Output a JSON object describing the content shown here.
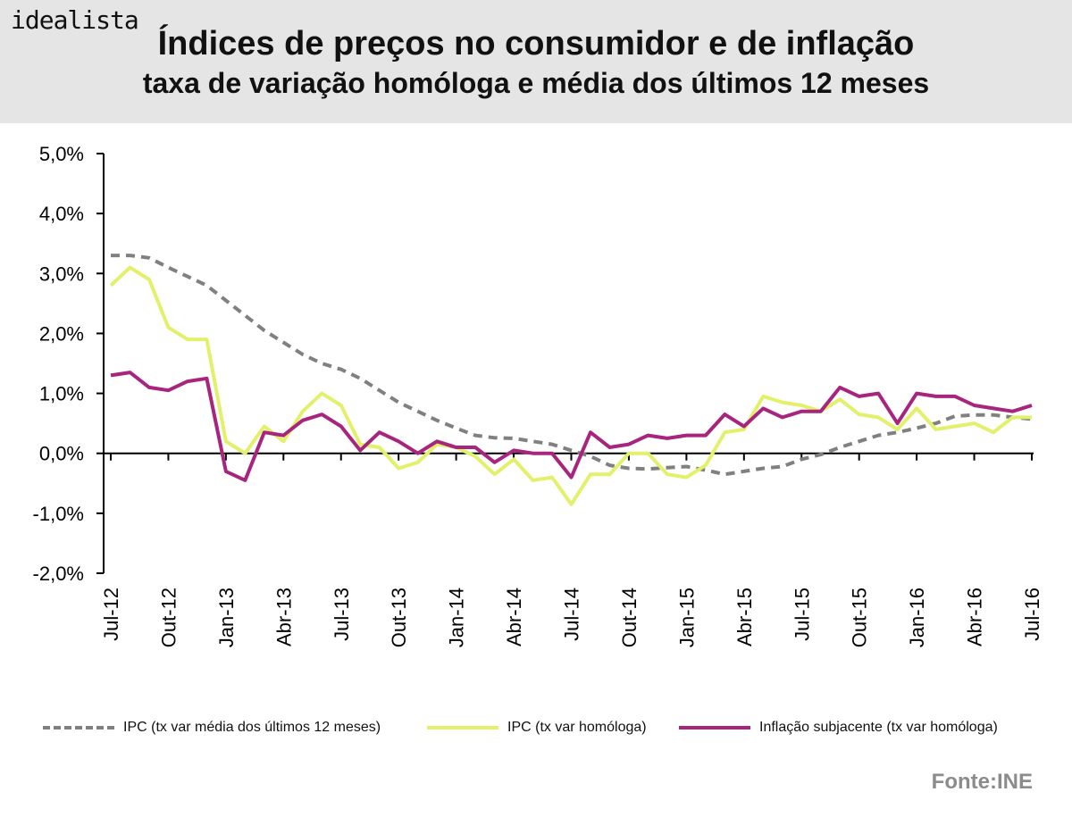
{
  "header": {
    "brand": "idealista",
    "title": "Índices de preços no consumidor e de inflação",
    "subtitle": "taxa de variação homóloga e média dos últimos 12 meses"
  },
  "source": "Fonte:INE",
  "chart_data": {
    "type": "line",
    "title": "Índices de preços no consumidor e de inflação",
    "subtitle": "taxa de variação homóloga e média dos últimos 12 meses",
    "ylim": [
      -2.0,
      5.0
    ],
    "yticks": [
      -2.0,
      -1.0,
      0.0,
      1.0,
      2.0,
      3.0,
      4.0,
      5.0
    ],
    "ytick_labels": [
      "-2,0%",
      "-1,0%",
      "0,0%",
      "1,0%",
      "2,0%",
      "3,0%",
      "4,0%",
      "5,0%"
    ],
    "x_tick_labels": [
      "Jul-12",
      "Out-12",
      "Jan-13",
      "Abr-13",
      "Jul-13",
      "Out-13",
      "Jan-14",
      "Abr-14",
      "Jul-14",
      "Out-14",
      "Jan-15",
      "Abr-15",
      "Jul-15",
      "Out-15",
      "Jan-16",
      "Abr-16",
      "Jul-16"
    ],
    "x_tick_every": 3,
    "n_points": 49,
    "legend_position": "bottom",
    "series": [
      {
        "name": "IPC (tx var média dos últimos 12 meses)",
        "color": "#808080",
        "style": "dashed",
        "values": [
          3.3,
          3.3,
          3.26,
          3.1,
          2.95,
          2.8,
          2.55,
          2.3,
          2.05,
          1.85,
          1.65,
          1.5,
          1.4,
          1.25,
          1.05,
          0.85,
          0.7,
          0.55,
          0.42,
          0.3,
          0.26,
          0.25,
          0.2,
          0.15,
          0.05,
          -0.05,
          -0.2,
          -0.25,
          -0.26,
          -0.24,
          -0.22,
          -0.28,
          -0.35,
          -0.3,
          -0.25,
          -0.22,
          -0.1,
          -0.02,
          0.1,
          0.2,
          0.3,
          0.35,
          0.42,
          0.5,
          0.62,
          0.64,
          0.64,
          0.6,
          0.57
        ]
      },
      {
        "name": "IPC (tx var homóloga)",
        "color": "#e3f06a",
        "style": "solid",
        "values": [
          2.8,
          3.1,
          2.9,
          2.1,
          1.9,
          1.9,
          0.2,
          0.0,
          0.45,
          0.2,
          0.7,
          1.0,
          0.8,
          0.15,
          0.1,
          -0.25,
          -0.15,
          0.15,
          0.1,
          -0.05,
          -0.35,
          -0.1,
          -0.45,
          -0.4,
          -0.85,
          -0.35,
          -0.35,
          0.0,
          0.0,
          -0.35,
          -0.4,
          -0.2,
          0.35,
          0.4,
          0.95,
          0.85,
          0.8,
          0.7,
          0.9,
          0.65,
          0.6,
          0.4,
          0.75,
          0.4,
          0.45,
          0.5,
          0.35,
          0.6,
          0.6
        ]
      },
      {
        "name": "Inflação subjacente (tx var homóloga)",
        "color": "#a8257e",
        "style": "solid",
        "values": [
          1.3,
          1.35,
          1.1,
          1.05,
          1.2,
          1.25,
          -0.3,
          -0.45,
          0.35,
          0.3,
          0.55,
          0.65,
          0.45,
          0.05,
          0.35,
          0.2,
          0.0,
          0.2,
          0.1,
          0.1,
          -0.15,
          0.05,
          0.0,
          0.0,
          -0.4,
          0.35,
          0.1,
          0.15,
          0.3,
          0.25,
          0.3,
          0.3,
          0.65,
          0.45,
          0.75,
          0.6,
          0.7,
          0.7,
          1.1,
          0.95,
          1.0,
          0.5,
          1.0,
          0.95,
          0.95,
          0.8,
          0.75,
          0.7,
          0.8
        ]
      }
    ]
  }
}
